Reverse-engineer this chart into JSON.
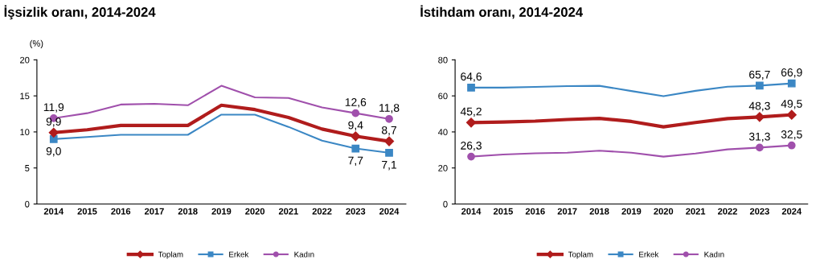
{
  "chart_data": [
    {
      "type": "line",
      "title": "İşsizlik oranı, 2014-2024",
      "ylabel": "(%)",
      "categories": [
        "2014",
        "2015",
        "2016",
        "2017",
        "2018",
        "2019",
        "2020",
        "2021",
        "2022",
        "2023",
        "2024"
      ],
      "ylim": [
        0,
        20
      ],
      "yticks": [
        0,
        5,
        10,
        15,
        20
      ],
      "grid": false,
      "legend": "bottom",
      "series": [
        {
          "name": "Toplam",
          "color": "#b01c1c",
          "values": [
            9.9,
            10.3,
            10.9,
            10.9,
            10.9,
            13.7,
            13.1,
            12.0,
            10.4,
            9.4,
            8.7
          ],
          "value_labels": [
            "9,9",
            null,
            null,
            null,
            null,
            null,
            null,
            null,
            null,
            "9,4",
            "8,7"
          ]
        },
        {
          "name": "Erkek",
          "color": "#3b87c4",
          "values": [
            9.0,
            9.3,
            9.6,
            9.6,
            9.6,
            12.4,
            12.4,
            10.7,
            8.8,
            7.7,
            7.1
          ],
          "value_labels": [
            "9,0",
            null,
            null,
            null,
            null,
            null,
            null,
            null,
            null,
            "7,7",
            "7,1"
          ]
        },
        {
          "name": "Kadın",
          "color": "#a050ac",
          "values": [
            11.9,
            12.6,
            13.8,
            13.9,
            13.7,
            16.4,
            14.8,
            14.7,
            13.4,
            12.6,
            11.8
          ],
          "value_labels": [
            "11,9",
            null,
            null,
            null,
            null,
            null,
            null,
            null,
            null,
            "12,6",
            "11,8"
          ]
        }
      ]
    },
    {
      "type": "line",
      "title": "İstihdam oranı, 2014-2024",
      "categories": [
        "2014",
        "2015",
        "2016",
        "2017",
        "2018",
        "2019",
        "2020",
        "2021",
        "2022",
        "2023",
        "2024"
      ],
      "ylim": [
        0,
        80
      ],
      "yticks": [
        0,
        20,
        40,
        60,
        80
      ],
      "grid": false,
      "legend": "bottom",
      "series": [
        {
          "name": "Toplam",
          "color": "#b01c1c",
          "values": [
            45.2,
            45.5,
            46.0,
            46.9,
            47.5,
            45.8,
            42.8,
            45.2,
            47.4,
            48.3,
            49.5
          ],
          "value_labels": [
            "45,2",
            null,
            null,
            null,
            null,
            null,
            null,
            null,
            null,
            "48,3",
            "49,5"
          ]
        },
        {
          "name": "Erkek",
          "color": "#3b87c4",
          "values": [
            64.6,
            64.6,
            65.0,
            65.4,
            65.6,
            62.7,
            59.8,
            62.8,
            65.1,
            65.7,
            66.9
          ],
          "value_labels": [
            "64,6",
            null,
            null,
            null,
            null,
            null,
            null,
            null,
            null,
            "65,7",
            "66,9"
          ]
        },
        {
          "name": "Kadın",
          "color": "#a050ac",
          "values": [
            26.3,
            27.5,
            28.1,
            28.5,
            29.6,
            28.5,
            26.3,
            28.0,
            30.3,
            31.3,
            32.5
          ],
          "value_labels": [
            "26,3",
            null,
            null,
            null,
            null,
            null,
            null,
            null,
            null,
            "31,3",
            "32,5"
          ]
        }
      ]
    }
  ]
}
